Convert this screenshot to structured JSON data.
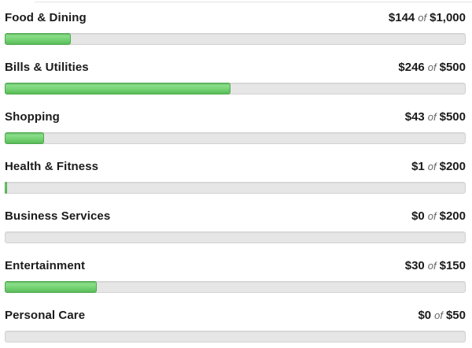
{
  "page": {
    "background": "#ffffff"
  },
  "colors": {
    "accent_green": "#5cbd5b",
    "green_gradient_light": "#8ade8a",
    "green_gradient_dark": "#5abc59",
    "green_border": "#4fa84f",
    "track_background": "#e6e6e6",
    "track_border": "#d2d2d2",
    "label_text": "#1b1b1b",
    "of_text": "#666666",
    "top_separator": "#e4e4e4"
  },
  "budgets": {
    "of_word": "of",
    "items": [
      {
        "category": "Food & Dining",
        "spent": "$144",
        "budget": "$1,000",
        "percent": 14.4
      },
      {
        "category": "Bills & Utilities",
        "spent": "$246",
        "budget": "$500",
        "percent": 49.2
      },
      {
        "category": "Shopping",
        "spent": "$43",
        "budget": "$500",
        "percent": 8.6
      },
      {
        "category": "Health & Fitness",
        "spent": "$1",
        "budget": "$200",
        "percent": 0.5
      },
      {
        "category": "Business Services",
        "spent": "$0",
        "budget": "$200",
        "percent": 0
      },
      {
        "category": "Entertainment",
        "spent": "$30",
        "budget": "$150",
        "percent": 20
      },
      {
        "category": "Personal Care",
        "spent": "$0",
        "budget": "$50",
        "percent": 0
      }
    ]
  }
}
